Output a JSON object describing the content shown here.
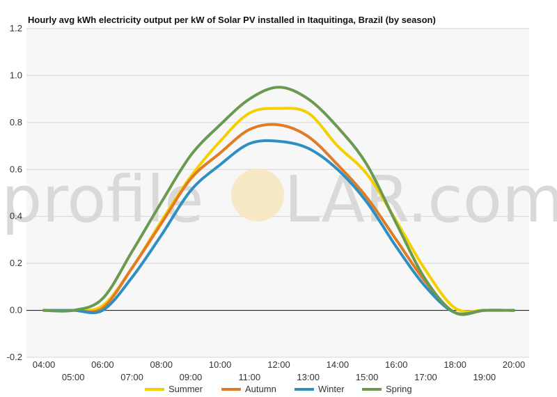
{
  "chart_data": {
    "type": "line",
    "title": "Hourly avg kWh electricity output per kW of Solar PV installed in Itaquitinga, Brazil (by season)",
    "xlabel": "",
    "ylabel": "",
    "ylim": [
      -0.2,
      1.2
    ],
    "yticks": [
      "1.2",
      "1.0",
      "0.8",
      "0.6",
      "0.4",
      "0.2",
      "0.0",
      "-0.2"
    ],
    "categories": [
      "04:00",
      "05:00",
      "06:00",
      "07:00",
      "08:00",
      "09:00",
      "10:00",
      "11:00",
      "12:00",
      "13:00",
      "14:00",
      "15:00",
      "16:00",
      "17:00",
      "18:00",
      "19:00",
      "20:00"
    ],
    "grid": true,
    "legend": "bottom",
    "series": [
      {
        "name": "Summer",
        "color": "#f5d000",
        "values": [
          0,
          0,
          0.02,
          0.18,
          0.38,
          0.57,
          0.72,
          0.84,
          0.86,
          0.84,
          0.7,
          0.58,
          0.38,
          0.17,
          0.01,
          0,
          0
        ]
      },
      {
        "name": "Autumn",
        "color": "#e07b26",
        "values": [
          0,
          0,
          0.01,
          0.18,
          0.37,
          0.56,
          0.67,
          0.77,
          0.79,
          0.74,
          0.62,
          0.48,
          0.3,
          0.12,
          -0.01,
          0,
          0
        ]
      },
      {
        "name": "Winter",
        "color": "#2e8fc0",
        "values": [
          0,
          0,
          0,
          0.14,
          0.32,
          0.51,
          0.62,
          0.71,
          0.72,
          0.69,
          0.6,
          0.46,
          0.27,
          0.1,
          -0.01,
          0,
          0
        ]
      },
      {
        "name": "Spring",
        "color": "#6a9a50",
        "values": [
          0,
          0,
          0.05,
          0.25,
          0.46,
          0.66,
          0.79,
          0.9,
          0.95,
          0.9,
          0.78,
          0.62,
          0.37,
          0.13,
          -0.01,
          0,
          0
        ]
      }
    ]
  },
  "watermark": {
    "left": "profile",
    "right": "LAR.com"
  }
}
